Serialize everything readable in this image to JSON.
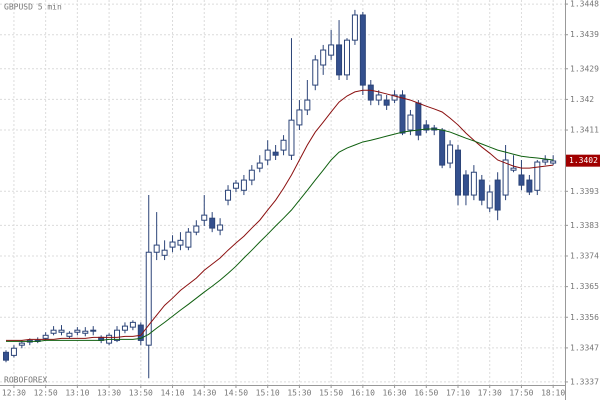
{
  "chart_data": {
    "type": "candlestick",
    "title": "GBPUSD 5 min",
    "watermark": "ROBOFOREX",
    "categories": [
      null,
      "12:30",
      null,
      null,
      null,
      "12:50",
      null,
      null,
      null,
      "13:10",
      null,
      null,
      null,
      "13:30",
      null,
      null,
      null,
      "13:50",
      null,
      null,
      null,
      "14:10",
      null,
      null,
      null,
      "14:30",
      null,
      null,
      null,
      "14:50",
      null,
      null,
      null,
      "15:10",
      null,
      null,
      null,
      "15:30",
      null,
      null,
      null,
      "15:50",
      null,
      null,
      null,
      "16:10",
      null,
      null,
      null,
      "16:30",
      null,
      null,
      null,
      "16:50",
      null,
      null,
      null,
      "17:10",
      null,
      null,
      null,
      "17:30",
      null,
      null,
      null,
      "17:50",
      null,
      null,
      null,
      "18:10"
    ],
    "open": [
      1.33457,
      1.33448,
      1.33478,
      1.33487,
      1.33492,
      1.33498,
      1.33513,
      1.33516,
      1.33504,
      1.33516,
      1.33513,
      1.33522,
      1.33501,
      1.33484,
      1.33492,
      1.33522,
      1.33531,
      1.33537,
      1.33478,
      1.33751,
      1.33742,
      1.33766,
      1.33772,
      1.33766,
      1.3381,
      1.33845,
      1.33851,
      1.33816,
      1.33904,
      1.33939,
      1.33933,
      1.33963,
      1.33998,
      1.34022,
      1.34045,
      1.34051,
      1.34036,
      1.34125,
      1.34169,
      1.34242,
      1.34301,
      1.3433,
      1.3436,
      1.34272,
      1.34374,
      1.34448,
      1.34242,
      1.34198,
      1.34198,
      1.34198,
      1.34213,
      1.3411,
      1.34189,
      1.34125,
      1.34116,
      1.3411,
      1.34013,
      1.34051,
      1.33978,
      1.33919,
      1.33963,
      1.33881,
      1.33963,
      1.33919,
      1.33992,
      1.33978,
      1.33963,
      1.33933,
      1.34016,
      1.34013
    ],
    "high": [
      1.33463,
      1.33478,
      1.33492,
      1.33498,
      1.33501,
      1.33516,
      1.33534,
      1.33537,
      1.33519,
      1.33531,
      1.33531,
      1.33534,
      1.33507,
      1.33513,
      1.33534,
      1.33545,
      1.33551,
      1.33545,
      1.33919,
      1.33869,
      1.33786,
      1.33801,
      1.3381,
      1.33822,
      1.33845,
      1.33919,
      1.33869,
      1.33851,
      1.33948,
      1.33963,
      1.33978,
      1.34007,
      1.34036,
      1.3408,
      1.34066,
      1.34095,
      1.3438,
      1.34198,
      1.34257,
      1.3433,
      1.3436,
      1.34404,
      1.34433,
      1.3438,
      1.34463,
      1.34457,
      1.34257,
      1.34227,
      1.34213,
      1.34227,
      1.34227,
      1.34169,
      1.34198,
      1.34139,
      1.34125,
      1.34116,
      1.3408,
      1.34066,
      1.33992,
      1.34007,
      1.33978,
      1.33948,
      1.33986,
      1.34066,
      1.34036,
      1.34022,
      1.33978,
      1.34022,
      1.34036,
      1.34036
    ],
    "low": [
      1.33428,
      1.33442,
      1.33469,
      1.33478,
      1.33484,
      1.33492,
      1.33507,
      1.33507,
      1.33498,
      1.33507,
      1.33504,
      1.33507,
      1.33484,
      1.33478,
      1.33487,
      1.33513,
      1.33522,
      1.33478,
      1.33381,
      1.33728,
      1.33728,
      1.33751,
      1.33757,
      1.33757,
      1.33801,
      1.33828,
      1.3381,
      1.33801,
      1.33889,
      1.33928,
      1.33919,
      1.33948,
      1.33986,
      1.34007,
      1.34022,
      1.34036,
      1.34022,
      1.3411,
      1.34154,
      1.34227,
      1.34272,
      1.34316,
      1.34257,
      1.34257,
      1.3436,
      1.34213,
      1.34183,
      1.34183,
      1.34169,
      1.34189,
      1.34095,
      1.34095,
      1.3408,
      1.34101,
      1.34095,
      1.33998,
      1.33998,
      1.33889,
      1.33889,
      1.33904,
      1.33889,
      1.33869,
      1.33845,
      1.33904,
      1.33986,
      1.33933,
      1.33919,
      1.33919,
      1.34007,
      1.34007
    ],
    "close": [
      1.33434,
      1.33469,
      1.33484,
      1.33492,
      1.33489,
      1.33507,
      1.33522,
      1.33522,
      1.33513,
      1.33522,
      1.33519,
      1.33519,
      1.33492,
      1.33507,
      1.33522,
      1.33534,
      1.33545,
      1.33492,
      1.33751,
      1.33772,
      1.33757,
      1.33781,
      1.33786,
      1.3381,
      1.33828,
      1.3386,
      1.33822,
      1.33831,
      1.33933,
      1.33954,
      1.33963,
      1.33992,
      1.34013,
      1.34051,
      1.34036,
      1.3408,
      1.34139,
      1.34169,
      1.34198,
      1.34316,
      1.34345,
      1.3436,
      1.34272,
      1.34374,
      1.34448,
      1.34242,
      1.34198,
      1.34213,
      1.34183,
      1.34213,
      1.34101,
      1.34154,
      1.34095,
      1.3411,
      1.3411,
      1.34007,
      1.34066,
      1.33919,
      1.33919,
      1.33986,
      1.33904,
      1.33928,
      1.33875,
      1.34022,
      1.33998,
      1.33948,
      1.33928,
      1.34016,
      1.34022,
      1.34019
    ],
    "up_color": "#ffffff",
    "down_color": "#34508e",
    "outline_color": "#2c4478",
    "overlays": [
      {
        "color": "#8b1010",
        "values": [
          1.33492,
          1.33492,
          1.33492,
          1.33495,
          1.33495,
          1.33495,
          1.33495,
          1.33498,
          1.33498,
          1.33498,
          1.33498,
          1.33501,
          1.33501,
          1.33501,
          1.33501,
          1.33504,
          1.33504,
          1.33507,
          1.33537,
          1.33566,
          1.33595,
          1.33616,
          1.33639,
          1.33657,
          1.33675,
          1.33698,
          1.33716,
          1.33734,
          1.33757,
          1.33778,
          1.33798,
          1.33822,
          1.33845,
          1.33875,
          1.33904,
          1.33939,
          1.33978,
          1.34022,
          1.34066,
          1.34104,
          1.34133,
          1.34163,
          1.34192,
          1.3421,
          1.34222,
          1.34227,
          1.34227,
          1.34222,
          1.34216,
          1.3421,
          1.34204,
          1.34198,
          1.34189,
          1.3418,
          1.34172,
          1.34163,
          1.34145,
          1.34125,
          1.34101,
          1.3408,
          1.3406,
          1.34042,
          1.34022,
          1.34013,
          1.34004,
          1.33998,
          1.33998,
          1.34001,
          1.34004,
          1.34007
        ]
      },
      {
        "color": "#106010",
        "values": [
          1.33489,
          1.33489,
          1.33489,
          1.33489,
          1.33489,
          1.33492,
          1.33492,
          1.33492,
          1.33492,
          1.33492,
          1.33492,
          1.33492,
          1.33492,
          1.33495,
          1.33495,
          1.33495,
          1.33495,
          1.33498,
          1.3351,
          1.33528,
          1.33545,
          1.33563,
          1.33581,
          1.33598,
          1.33616,
          1.33634,
          1.33651,
          1.33669,
          1.33689,
          1.3371,
          1.33734,
          1.33757,
          1.33781,
          1.33804,
          1.33828,
          1.33851,
          1.33875,
          1.33904,
          1.33933,
          1.33963,
          1.33992,
          1.34022,
          1.34045,
          1.34057,
          1.34066,
          1.34075,
          1.3408,
          1.34086,
          1.34092,
          1.34098,
          1.34104,
          1.34107,
          1.3411,
          1.34113,
          1.34113,
          1.3411,
          1.34104,
          1.34095,
          1.34086,
          1.34078,
          1.34069,
          1.3406,
          1.34051,
          1.34045,
          1.34039,
          1.34033,
          1.3403,
          1.34028,
          1.34025,
          1.34022
        ]
      }
    ],
    "last_price": 1.3402,
    "last_price_color": "#a00000",
    "ylim": [
      1.33361,
      1.34492
    ],
    "yticks": [
      1.3448,
      1.3439,
      1.3429,
      1.342,
      1.3411,
      1.3393,
      1.3383,
      1.3374,
      1.3365,
      1.3356,
      1.3347,
      1.3337
    ],
    "grid": true
  }
}
